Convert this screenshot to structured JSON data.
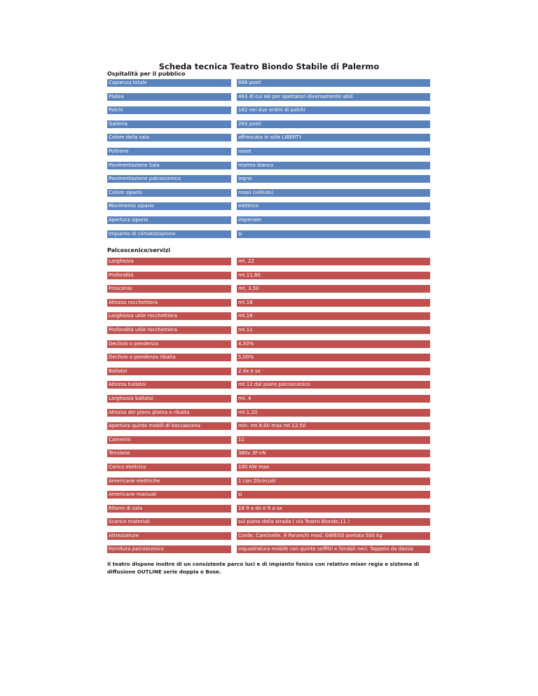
{
  "title": "Scheda tecnica Teatro Biondo Stabile di Palermo",
  "sections": [
    {
      "heading": "Ospitalità per il pubblico",
      "rows": [
        {
          "label": "Capienza totale",
          "value": "888 posti"
        },
        {
          "label": "Platea",
          "value": "463 di cui sei per spettatori  diversamente abili"
        },
        {
          "label": "Palchi",
          "value": "162 nei due ordini di palchi"
        },
        {
          "label": "Galleria",
          "value": "263 posti"
        },
        {
          "label": "Colore della sala",
          "value": "affrescata in stile  LIBERTY"
        },
        {
          "label": "Poltrone",
          "value": "rosse"
        },
        {
          "label": "Pavimentazione Sala",
          "value": "marmo  bianco"
        },
        {
          "label": "Pavimentazione palcoscenico",
          "value": "legno"
        },
        {
          "label": "Colore sipario",
          "value": "rosso (velluto)"
        },
        {
          "label": "Movimento sipario",
          "value": "elettrico"
        },
        {
          "label": "Apertura sipario",
          "value": "imperiale"
        },
        {
          "label": "Impianto di climatizzazione",
          "value": "si"
        }
      ]
    },
    {
      "heading": "Palcoscenico/servizi",
      "rows": [
        {
          "label": "Larghezza",
          "value": "mt. 22"
        },
        {
          "label": "Profondità",
          "value": "mt.11,80"
        },
        {
          "label": "Proscenio",
          "value": "mt, 3,50"
        },
        {
          "label": "Altezza  rocchettiera",
          "value": "mt.18"
        },
        {
          "label": "Larghezza utile rocchettiera",
          "value": "mt.16"
        },
        {
          "label": "Profondità utile rocchettiera",
          "value": "mt.11"
        },
        {
          "label": "Declivio o pendenza",
          "value": "4,50%"
        },
        {
          "label": "Declivio o pendenza ribalta",
          "value": "5,00%"
        },
        {
          "label": "Ballatoi",
          "value": "2 dx e sx"
        },
        {
          "label": "Altezza ballatoi",
          "value": "mt.12 dal piano palcoscenico"
        },
        {
          "label": "Larghezza ballatoi",
          "value": "mt. 4"
        },
        {
          "label": "Altezza del piano platea o ribalta",
          "value": "mt.1,20"
        },
        {
          "label": "Apertura quinte mobili di boccascena",
          "value": "min. mt.9,00  max  mt.12,50"
        },
        {
          "label": "Camerini",
          "value": "11"
        },
        {
          "label": "Tensione",
          "value": "380v 3F+N"
        },
        {
          "label": "Carico elettrico",
          "value": "100 KW max"
        },
        {
          "label": "Americane elettriche",
          "value": "1 con 20circuiti"
        },
        {
          "label": "Americane manuali",
          "value": "si"
        },
        {
          "label": "Ritorni di sala",
          "value": "18  9 a dx e 9 a sx"
        },
        {
          "label": "Scarico materiali",
          "value": "sul piano della strada  ( via Teatro Biondo,11 )"
        },
        {
          "label": "Attrezzature",
          "value": "Corde, Cantinelle, 8 Paranchi mod. GWEISS portata 500 kg"
        },
        {
          "label": "Fornitura palcoscenico",
          "value": "inquadratura mobile con quinte soffitti e fondali neri. Tappeto da danza"
        }
      ]
    }
  ],
  "footnote": "Il teatro dispone inoltre di un consistente parco luci e di impianto fonico con relativo mixer regia e sistema di diffusione OUTLINE serie doppia e Bose.",
  "colors": {
    "section1_fill": "#5a82bd",
    "section2_fill": "#c0504d"
  }
}
